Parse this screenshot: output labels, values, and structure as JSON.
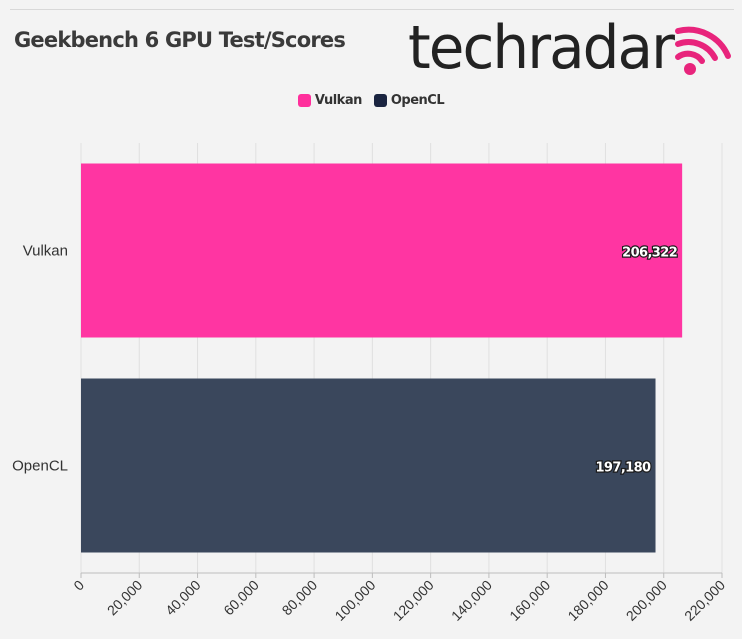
{
  "header": {
    "title": "Geekbench 6 GPU Test/Scores",
    "logo_text": "techradar",
    "logo_icon": "broadcast-waves-icon",
    "logo_color": "#222222",
    "logo_accent": "#e8247c"
  },
  "legend": [
    {
      "name": "Vulkan",
      "color": "#ff2f9c"
    },
    {
      "name": "OpenCL",
      "color": "#1a2440"
    }
  ],
  "chart_data": {
    "type": "bar",
    "orientation": "horizontal",
    "title": "Geekbench 6 GPU Test/Scores",
    "categories": [
      "Vulkan",
      "OpenCL"
    ],
    "values": [
      206322,
      197180
    ],
    "value_labels": [
      "206,322",
      "197,180"
    ],
    "colors": [
      "#ff35a2",
      "#3a475c"
    ],
    "xlim": [
      0,
      220000
    ],
    "xticks": [
      0,
      20000,
      40000,
      60000,
      80000,
      100000,
      120000,
      140000,
      160000,
      180000,
      200000,
      220000
    ],
    "xtick_labels": [
      "0",
      "20,000",
      "40,000",
      "60,000",
      "80,000",
      "100,000",
      "120,000",
      "140,000",
      "160,000",
      "180,000",
      "200,000",
      "220,000"
    ],
    "xlabel": "",
    "ylabel": "",
    "grid": "vertical",
    "legend_position": "top-center"
  }
}
